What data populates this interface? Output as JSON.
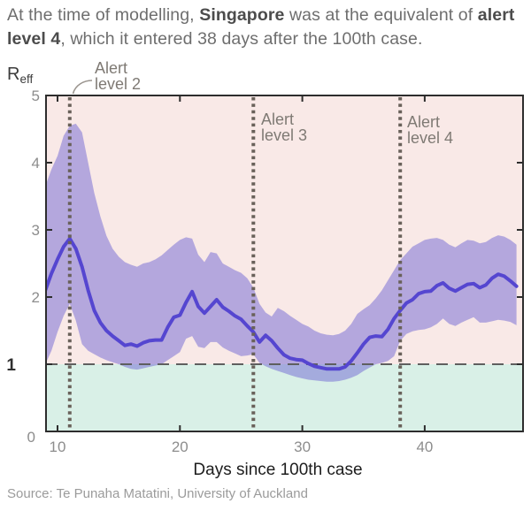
{
  "header": {
    "part1": "At the time of modelling, ",
    "bold1": "Singapore",
    "part2": " was at the equivalent of ",
    "bold2": "alert level 4",
    "part3": ", which it entered 38 days after the 100th case."
  },
  "source": "Source: Te Punaha Matatini, University of Auckland",
  "chart_data": {
    "type": "line",
    "title": "",
    "xlabel": "Days since 100th case",
    "ylabel_main": "R",
    "ylabel_sub": "eff",
    "xlim": [
      9.06,
      48.03
    ],
    "ylim": [
      0,
      5
    ],
    "xticks": [
      10,
      20,
      30,
      40
    ],
    "yticks": [
      0,
      1,
      2,
      3,
      4,
      5
    ],
    "grid": false,
    "legend": "none",
    "threshold": {
      "y": 1,
      "style": "dashed"
    },
    "alert_lines": [
      {
        "day": 11,
        "label_line1": "Alert",
        "label_line2": "level 2"
      },
      {
        "day": 26,
        "label_line1": "Alert",
        "label_line2": "level 3"
      },
      {
        "day": 38,
        "label_line1": "Alert",
        "label_line2": "level 4"
      }
    ],
    "x": [
      9,
      9.5,
      10,
      10.5,
      11,
      11.5,
      12,
      12.5,
      13,
      13.5,
      14,
      14.5,
      15,
      15.5,
      16,
      16.5,
      17,
      17.5,
      18,
      18.5,
      19,
      19.5,
      20,
      20.5,
      21,
      21.5,
      22,
      22.5,
      23,
      23.5,
      24,
      24.5,
      25,
      25.5,
      26,
      26.5,
      27,
      27.5,
      28,
      28.5,
      29,
      29.5,
      30,
      30.5,
      31,
      31.5,
      32,
      32.5,
      33,
      33.5,
      34,
      34.5,
      35,
      35.5,
      36,
      36.5,
      37,
      37.5,
      38,
      38.5,
      39,
      39.5,
      40,
      40.5,
      41,
      41.5,
      42,
      42.5,
      43,
      43.5,
      44,
      44.5,
      45,
      45.5,
      46,
      46.5,
      47,
      47.5
    ],
    "series": [
      {
        "name": "Reff median",
        "y": [
          2.1,
          2.35,
          2.56,
          2.75,
          2.87,
          2.72,
          2.45,
          2.1,
          1.8,
          1.62,
          1.5,
          1.42,
          1.35,
          1.28,
          1.3,
          1.27,
          1.32,
          1.35,
          1.36,
          1.36,
          1.55,
          1.7,
          1.73,
          1.92,
          2.08,
          1.86,
          1.76,
          1.86,
          1.96,
          1.85,
          1.79,
          1.72,
          1.67,
          1.57,
          1.48,
          1.33,
          1.43,
          1.35,
          1.24,
          1.14,
          1.09,
          1.07,
          1.06,
          1.01,
          0.97,
          0.95,
          0.93,
          0.93,
          0.93,
          0.96,
          1.05,
          1.17,
          1.3,
          1.4,
          1.42,
          1.41,
          1.52,
          1.68,
          1.8,
          1.91,
          1.96,
          2.05,
          2.08,
          2.09,
          2.17,
          2.21,
          2.13,
          2.09,
          2.14,
          2.19,
          2.2,
          2.14,
          2.18,
          2.28,
          2.34,
          2.31,
          2.24,
          2.16
        ]
      },
      {
        "name": "credible interval lower",
        "y": [
          1.0,
          1.2,
          1.48,
          1.72,
          1.9,
          1.65,
          1.3,
          1.2,
          1.15,
          1.1,
          1.06,
          1.03,
          1.0,
          0.96,
          0.93,
          0.92,
          0.94,
          0.96,
          0.98,
          1.0,
          1.06,
          1.12,
          1.18,
          1.38,
          1.42,
          1.26,
          1.24,
          1.33,
          1.33,
          1.25,
          1.2,
          1.16,
          1.12,
          1.13,
          1.15,
          1.02,
          0.97,
          0.93,
          0.9,
          0.87,
          0.84,
          0.81,
          0.79,
          0.77,
          0.76,
          0.75,
          0.74,
          0.74,
          0.75,
          0.77,
          0.8,
          0.84,
          0.9,
          0.95,
          1.0,
          1.02,
          1.05,
          1.12,
          1.35,
          1.45,
          1.49,
          1.51,
          1.52,
          1.55,
          1.6,
          1.68,
          1.6,
          1.57,
          1.62,
          1.66,
          1.7,
          1.62,
          1.62,
          1.64,
          1.66,
          1.65,
          1.63,
          1.58
        ]
      },
      {
        "name": "credible interval upper",
        "y": [
          3.65,
          3.9,
          4.1,
          4.4,
          4.55,
          4.58,
          4.45,
          4.0,
          3.55,
          3.2,
          2.91,
          2.72,
          2.6,
          2.52,
          2.48,
          2.45,
          2.5,
          2.52,
          2.56,
          2.62,
          2.7,
          2.78,
          2.85,
          2.89,
          2.87,
          2.63,
          2.52,
          2.67,
          2.65,
          2.5,
          2.45,
          2.4,
          2.36,
          2.28,
          2.14,
          1.9,
          1.77,
          1.71,
          1.84,
          1.79,
          1.72,
          1.66,
          1.6,
          1.56,
          1.5,
          1.46,
          1.44,
          1.43,
          1.45,
          1.5,
          1.6,
          1.75,
          1.82,
          1.88,
          1.98,
          2.1,
          2.25,
          2.4,
          2.55,
          2.65,
          2.75,
          2.8,
          2.85,
          2.87,
          2.88,
          2.85,
          2.78,
          2.74,
          2.8,
          2.85,
          2.84,
          2.8,
          2.82,
          2.88,
          2.92,
          2.9,
          2.85,
          2.78
        ]
      }
    ],
    "colors": {
      "line": "#5546d0",
      "band": "#7066d3",
      "region_above_threshold": "#f9e9e7",
      "region_below_threshold": "#d9f0e7",
      "threshold_dash": "#5f5f5f",
      "alert_dots": "#69615a",
      "frame": "#2d2d2d",
      "tick_label": "#8d8d8d",
      "one_label": "#2f2f2f",
      "alert_label": "#7f7a74",
      "axis_label": "#1d1d1d"
    }
  }
}
